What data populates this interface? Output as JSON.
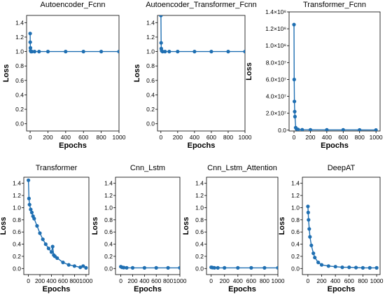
{
  "chart_data": [
    {
      "type": "line",
      "title": "Autoencoder_Fcnn",
      "xlabel": "Epochs",
      "ylabel": "Loss",
      "xlim": [
        -40,
        1000
      ],
      "ylim": [
        -0.1,
        1.5
      ],
      "xticks": [
        0,
        200,
        400,
        600,
        800,
        1000
      ],
      "xtick_labels": [
        "0",
        "200",
        "400",
        "600",
        "800",
        "1000"
      ],
      "yticks": [
        0.0,
        0.2,
        0.4,
        0.6,
        0.8,
        1.0,
        1.2,
        1.4
      ],
      "ytick_labels": [
        "0.0",
        "0.2",
        "0.4",
        "0.6",
        "0.8",
        "1.0",
        "1.2",
        "1.4"
      ],
      "x": [
        0,
        1,
        3,
        5,
        10,
        20,
        50,
        100,
        200,
        400,
        600,
        800,
        1000
      ],
      "y": [
        1.25,
        1.13,
        1.05,
        1.01,
        1.0,
        1.0,
        1.0,
        1.0,
        1.0,
        1.0,
        1.0,
        1.0,
        1.0
      ]
    },
    {
      "type": "line",
      "title": "Autoencoder_Transformer_Fcnn",
      "xlabel": "Epochs",
      "ylabel": "Loss",
      "xlim": [
        -40,
        1000
      ],
      "ylim": [
        -0.1,
        1.5
      ],
      "xticks": [
        0,
        200,
        400,
        600,
        800,
        1000
      ],
      "xtick_labels": [
        "0",
        "200",
        "400",
        "600",
        "800",
        "1000"
      ],
      "yticks": [
        0.0,
        0.2,
        0.4,
        0.6,
        0.8,
        1.0,
        1.2,
        1.4
      ],
      "ytick_labels": [
        "0.0",
        "0.2",
        "0.4",
        "0.6",
        "0.8",
        "1.0",
        "1.2",
        "1.4"
      ],
      "x": [
        0,
        1,
        3,
        5,
        10,
        20,
        50,
        100,
        200,
        400,
        600,
        800,
        1000
      ],
      "y": [
        1.5,
        1.5,
        1.12,
        1.04,
        1.01,
        1.0,
        1.0,
        1.0,
        1.0,
        1.0,
        1.0,
        1.0,
        1.0
      ]
    },
    {
      "type": "line",
      "title": "Transformer_Fcnn",
      "xlabel": "Epochs",
      "ylabel": "Loss",
      "xlim": [
        -60,
        1050
      ],
      "ylim": [
        -1000000,
        140000000
      ],
      "xticks": [
        0,
        200,
        400,
        600,
        800,
        1000
      ],
      "xtick_labels": [
        "0",
        "200",
        "400",
        "600",
        "800",
        "1000"
      ],
      "yticks": [
        0,
        20000000,
        40000000,
        60000000,
        80000000,
        100000000,
        120000000,
        140000000
      ],
      "ytick_labels": [
        "0.0",
        "2.0×10⁷",
        "4.0×10⁷",
        "6.0×10⁷",
        "8.0×10⁷",
        "1.0×10⁸",
        "1.2×10⁸",
        "1.4×10⁸"
      ],
      "x": [
        0,
        2,
        5,
        8,
        12,
        20,
        30,
        50,
        100,
        200,
        400,
        600,
        800,
        1000
      ],
      "y": [
        125000000,
        60000000,
        34000000,
        22000000,
        16000000,
        3000000,
        1500000,
        800000,
        500000,
        400000,
        350000,
        300000,
        250000,
        200000
      ]
    },
    {
      "type": "line",
      "title": "Transformer",
      "xlabel": "Epochs",
      "ylabel": "Loss",
      "xlim": [
        -80,
        1050
      ],
      "ylim": [
        -0.1,
        1.5
      ],
      "xticks": [
        0,
        200,
        400,
        600,
        800,
        1000
      ],
      "xtick_labels": [
        "0",
        "200",
        "400",
        "600",
        "800",
        "1000"
      ],
      "yticks": [
        0.0,
        0.2,
        0.4,
        0.6,
        0.8,
        1.0,
        1.2,
        1.4
      ],
      "ytick_labels": [
        "0.0",
        "0.2",
        "0.4",
        "0.6",
        "0.8",
        "1.0",
        "1.2",
        "1.4"
      ],
      "x": [
        0,
        10,
        20,
        40,
        60,
        80,
        100,
        150,
        200,
        250,
        300,
        350,
        400,
        420,
        440,
        460,
        500,
        600,
        700,
        800,
        900,
        950,
        1000
      ],
      "y": [
        1.45,
        1.15,
        1.05,
        0.97,
        0.92,
        0.86,
        0.82,
        0.7,
        0.58,
        0.48,
        0.4,
        0.33,
        0.27,
        0.36,
        0.22,
        0.2,
        0.17,
        0.1,
        0.06,
        0.04,
        0.02,
        0.04,
        0.01
      ]
    },
    {
      "type": "line",
      "title": "Cnn_Lstm",
      "xlabel": "Epochs",
      "ylabel": "Loss",
      "xlim": [
        -90,
        1000
      ],
      "ylim": [
        -0.1,
        1.5
      ],
      "xticks": [
        0,
        200,
        400,
        600,
        800,
        1000
      ],
      "xtick_labels": [
        "0",
        "200",
        "400",
        "600",
        "800",
        "1000"
      ],
      "yticks": [
        0.0,
        0.2,
        0.4,
        0.6,
        0.8,
        1.0,
        1.2,
        1.4
      ],
      "ytick_labels": [
        "0.0",
        "0.2",
        "0.4",
        "0.6",
        "0.8",
        "1.0",
        "1.2",
        "1.4"
      ],
      "x": [
        0,
        20,
        50,
        100,
        200,
        400,
        600,
        800,
        1000
      ],
      "y": [
        0.03,
        0.02,
        0.015,
        0.012,
        0.01,
        0.01,
        0.01,
        0.01,
        0.01
      ]
    },
    {
      "type": "line",
      "title": "Cnn_Lstm_Attention",
      "xlabel": "Epochs",
      "ylabel": "Loss",
      "xlim": [
        -70,
        1000
      ],
      "ylim": [
        -0.1,
        1.5
      ],
      "xticks": [
        0,
        200,
        400,
        600,
        800,
        1000
      ],
      "xtick_labels": [
        "0",
        "200",
        "400",
        "600",
        "800",
        "1000"
      ],
      "yticks": [
        0.0,
        0.2,
        0.4,
        0.6,
        0.8,
        1.0,
        1.2,
        1.4
      ],
      "ytick_labels": [
        "0.0",
        "0.2",
        "0.4",
        "0.6",
        "0.8",
        "1.0",
        "1.2",
        "1.4"
      ],
      "x": [
        0,
        20,
        50,
        100,
        200,
        400,
        600,
        800,
        1000
      ],
      "y": [
        0.02,
        0.015,
        0.012,
        0.01,
        0.01,
        0.01,
        0.01,
        0.01,
        0.01
      ]
    },
    {
      "type": "line",
      "title": "DeepAT",
      "xlabel": "Epochs",
      "ylabel": "Loss",
      "xlim": [
        -80,
        1050
      ],
      "ylim": [
        -0.1,
        1.5
      ],
      "xticks": [
        0,
        200,
        400,
        600,
        800,
        1000
      ],
      "xtick_labels": [
        "0",
        "200",
        "400",
        "600",
        "800",
        "1000"
      ],
      "yticks": [
        0.0,
        0.2,
        0.4,
        0.6,
        0.8,
        1.0,
        1.2,
        1.4
      ],
      "ytick_labels": [
        "0.0",
        "0.2",
        "0.4",
        "0.6",
        "0.8",
        "1.0",
        "1.2",
        "1.4"
      ],
      "x": [
        0,
        5,
        10,
        20,
        30,
        50,
        80,
        100,
        150,
        200,
        300,
        400,
        500,
        600,
        700,
        800,
        900,
        1000
      ],
      "y": [
        1.02,
        0.92,
        0.8,
        0.65,
        0.52,
        0.38,
        0.25,
        0.18,
        0.1,
        0.06,
        0.04,
        0.03,
        0.02,
        0.02,
        0.015,
        0.01,
        0.01,
        0.01
      ]
    }
  ],
  "colors": {
    "series": "#1f6fb2"
  }
}
